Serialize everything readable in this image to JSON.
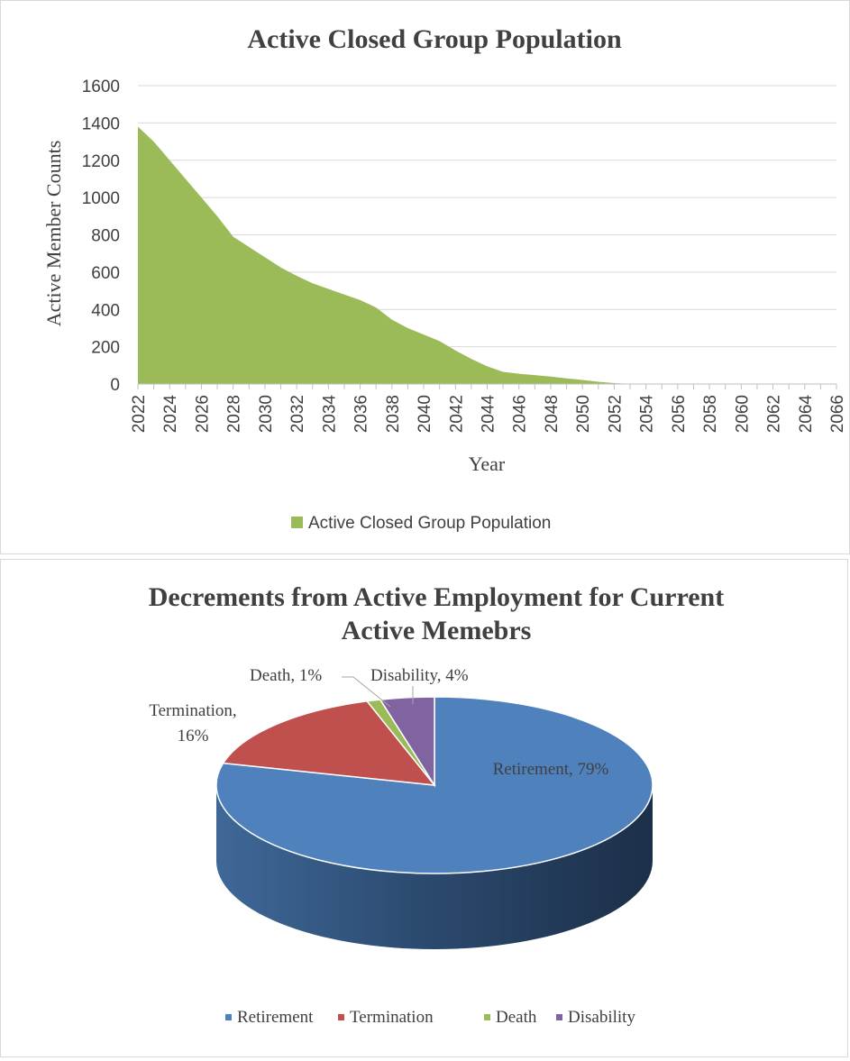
{
  "chart_data": [
    {
      "type": "area",
      "title": "Active Closed Group Population",
      "xlabel": "Year",
      "ylabel": "Active Member Counts",
      "ylim": [
        0,
        1600
      ],
      "yticks": [
        0,
        200,
        400,
        600,
        800,
        1000,
        1200,
        1400,
        1600
      ],
      "xlim": [
        2022,
        2066
      ],
      "xticks": [
        2022,
        2024,
        2026,
        2028,
        2030,
        2032,
        2034,
        2036,
        2038,
        2040,
        2042,
        2044,
        2046,
        2048,
        2050,
        2052,
        2054,
        2056,
        2058,
        2060,
        2062,
        2064,
        2066
      ],
      "grid": true,
      "legend_position": "bottom",
      "colors": {
        "fill": "#9BBB59",
        "grid": "#d9d9d9",
        "axis": "#bfbfbf"
      },
      "series": [
        {
          "name": "Active Closed Group Population",
          "x": [
            2022,
            2023,
            2024,
            2025,
            2026,
            2027,
            2028,
            2029,
            2030,
            2031,
            2032,
            2033,
            2034,
            2035,
            2036,
            2037,
            2038,
            2039,
            2040,
            2041,
            2042,
            2043,
            2044,
            2045,
            2046,
            2047,
            2048,
            2049,
            2050,
            2051,
            2052,
            2053,
            2054,
            2055,
            2056,
            2057,
            2058,
            2059,
            2060,
            2061,
            2062,
            2063,
            2064,
            2065,
            2066
          ],
          "values": [
            1380,
            1300,
            1200,
            1100,
            1000,
            900,
            790,
            735,
            680,
            625,
            580,
            540,
            510,
            480,
            450,
            410,
            345,
            300,
            265,
            230,
            180,
            135,
            95,
            65,
            55,
            48,
            40,
            30,
            22,
            12,
            5,
            1,
            0,
            0,
            0,
            0,
            0,
            0,
            0,
            0,
            0,
            0,
            0,
            0,
            0
          ]
        }
      ]
    },
    {
      "type": "pie",
      "title": "Decrements from Active Employment for Current Active Memebrs",
      "title_lines": [
        "Decrements from Active Employment for Current",
        "Active Memebrs"
      ],
      "legend_position": "bottom",
      "categories": [
        "Retirement",
        "Termination",
        "Death",
        "Disability"
      ],
      "values": [
        79,
        16,
        1,
        4
      ],
      "labels": [
        "Retirement, 79%",
        "Termination,",
        "16%",
        "Death, 1%",
        "Disability, 4%"
      ],
      "colors": [
        "#4F81BD",
        "#C0504D",
        "#9BBB59",
        "#8064A2"
      ]
    }
  ]
}
